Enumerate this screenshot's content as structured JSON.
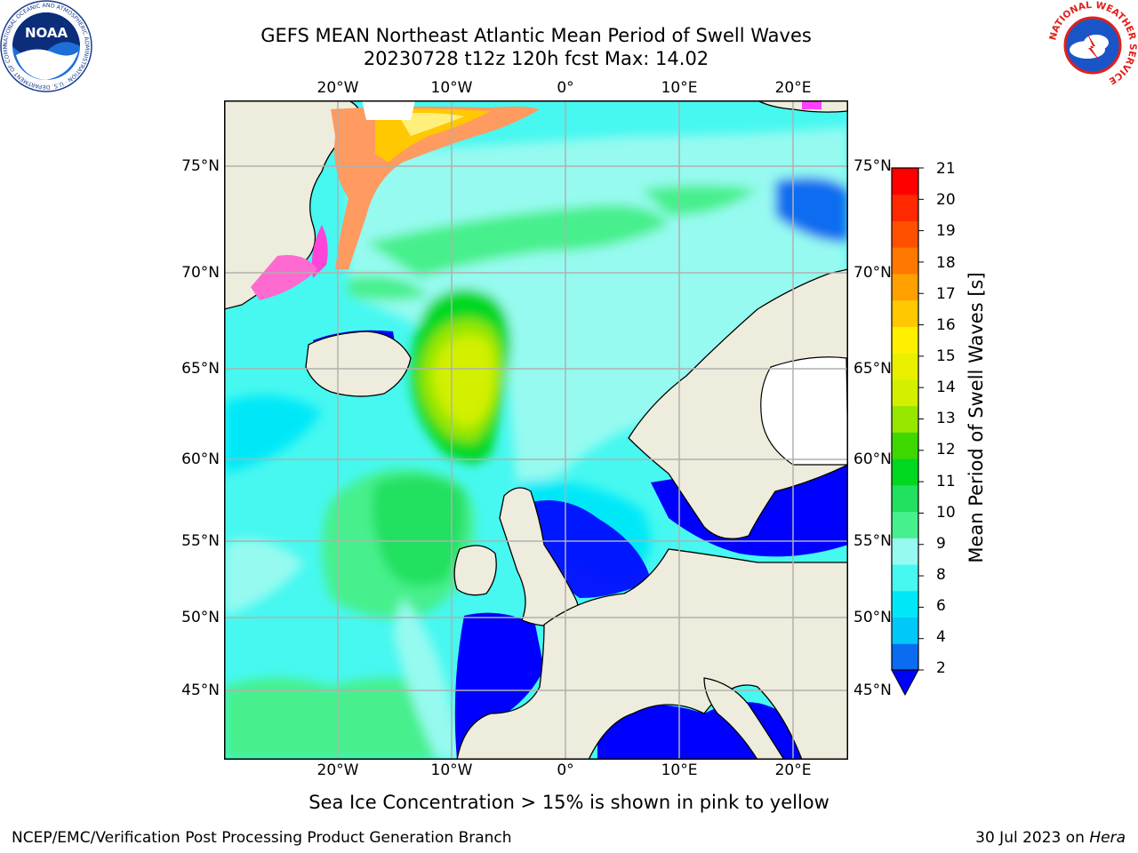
{
  "title": {
    "line1": "GEFS MEAN Northeast Atlantic Mean Period of Swell Waves",
    "line2": "20230728 t12z 120h fcst   Max: 14.02"
  },
  "map": {
    "lon_labels": [
      "20°W",
      "10°W",
      "0°",
      "10°E",
      "20°E"
    ],
    "lat_labels": [
      "75°N",
      "70°N",
      "65°N",
      "60°N",
      "55°N",
      "50°N",
      "45°N"
    ],
    "colors": {
      "land": "#eeecdc",
      "grid": "#b0b0b0",
      "coast": "#000000",
      "no_data": "#ffffff"
    }
  },
  "colorbar": {
    "label": "Mean Period of Swell Waves [s]",
    "ticks": [
      "21",
      "20",
      "19",
      "18",
      "17",
      "16",
      "15",
      "14",
      "13",
      "12",
      "11",
      "10",
      "9",
      "8",
      "6",
      "4",
      "2"
    ],
    "colors_low_to_high": [
      "#0a6cf0",
      "#00c8f8",
      "#00e8f8",
      "#46f8f0",
      "#96faf0",
      "#46f08c",
      "#22e060",
      "#00d820",
      "#3cd800",
      "#96e600",
      "#d2f000",
      "#e8f000",
      "#fff000",
      "#ffc800",
      "#ffa000",
      "#ff7800",
      "#ff5000",
      "#ff2800",
      "#ff0000"
    ],
    "under_color": "#0000ff"
  },
  "subtitle": "Sea Ice Concentration > 15% is shown in pink to yellow",
  "footer": {
    "left": "NCEP/EMC/Verification Post Processing Product Generation Branch",
    "right_prefix": "30 Jul 2023 on ",
    "right_host": "Hera"
  },
  "logos": {
    "noaa": "NOAA",
    "noaa_ring": "NATIONAL OCEANIC AND ATMOSPHERIC ADMINISTRATION · U.S. DEPARTMENT OF COMMERCE",
    "nws_ring": "NATIONAL WEATHER SERVICE"
  }
}
